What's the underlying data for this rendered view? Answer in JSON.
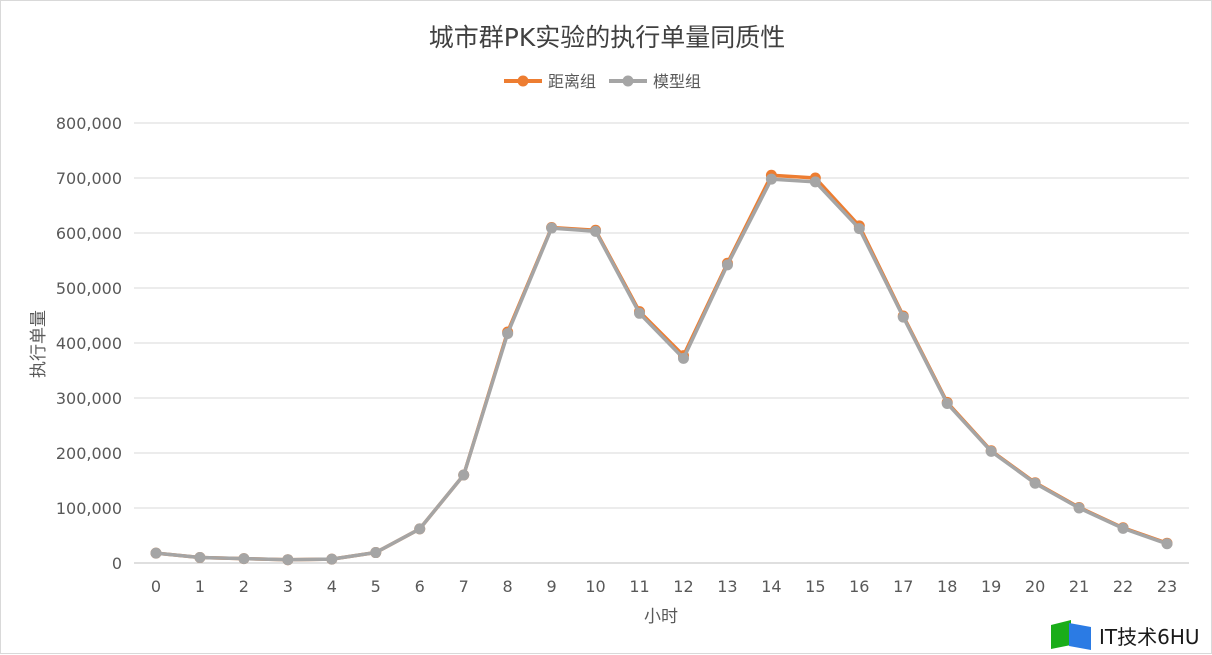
{
  "chart_data": {
    "type": "line",
    "title": "城市群PK实验的执行单量同质性",
    "xlabel": "小时",
    "ylabel": "执行单量",
    "x": [
      0,
      1,
      2,
      3,
      4,
      5,
      6,
      7,
      8,
      9,
      10,
      11,
      12,
      13,
      14,
      15,
      16,
      17,
      18,
      19,
      20,
      21,
      22,
      23
    ],
    "ylim": [
      0,
      800000
    ],
    "yticks": [
      0,
      100000,
      200000,
      300000,
      400000,
      500000,
      600000,
      700000,
      800000
    ],
    "ytick_labels": [
      "0",
      "100,000",
      "200,000",
      "300,000",
      "400,000",
      "500,000",
      "600,000",
      "700,000",
      "800,000"
    ],
    "grid": true,
    "legend_position": "top-center",
    "series": [
      {
        "name": "距离组",
        "color": "#ED7D31",
        "values": [
          18000,
          10000,
          8000,
          6000,
          7000,
          19000,
          62000,
          160000,
          420000,
          610000,
          605000,
          457000,
          377000,
          545000,
          705000,
          700000,
          613000,
          449000,
          292000,
          204000,
          146000,
          101000,
          64000,
          36000
        ]
      },
      {
        "name": "模型组",
        "color": "#A5A5A5",
        "values": [
          18000,
          10000,
          8000,
          6000,
          7000,
          19000,
          62000,
          160000,
          417000,
          609000,
          603000,
          454000,
          372000,
          542000,
          698000,
          693000,
          608000,
          447000,
          290000,
          203000,
          145000,
          100000,
          63000,
          35000
        ]
      }
    ]
  },
  "watermark": {
    "text": "IT技术6HU",
    "logo_colors": [
      "#1AAD19",
      "#2B7BE4"
    ]
  }
}
